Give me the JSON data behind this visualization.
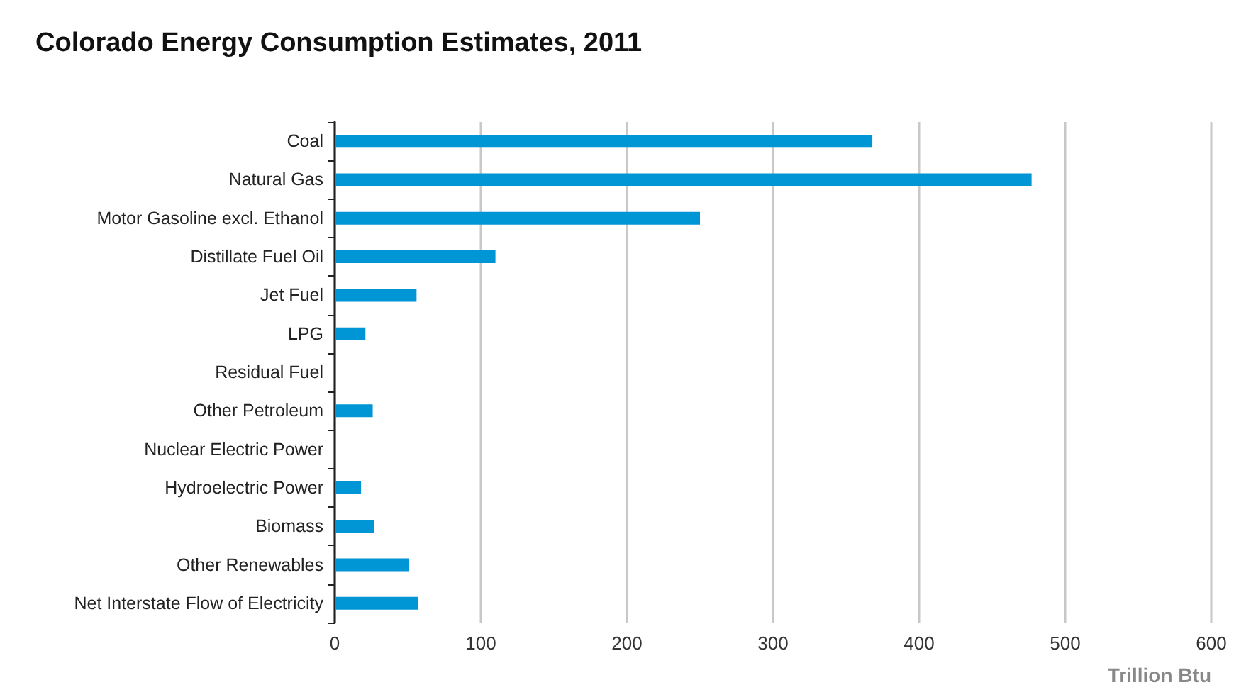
{
  "chart_data": {
    "type": "bar",
    "orientation": "horizontal",
    "title": "Colorado Energy Consumption Estimates, 2011",
    "xlabel": "Trillion Btu",
    "categories": [
      "Coal",
      "Natural Gas",
      "Motor Gasoline excl. Ethanol",
      "Distillate Fuel Oil",
      "Jet Fuel",
      "LPG",
      "Residual Fuel",
      "Other Petroleum",
      "Nuclear Electric Power",
      "Hydroelectric Power",
      "Biomass",
      "Other Renewables",
      "Net Interstate Flow of Electricity"
    ],
    "values": [
      368,
      477,
      250,
      110,
      56,
      21,
      0,
      26,
      0,
      18,
      27,
      51,
      57
    ],
    "color": "#0096d6",
    "xlim": [
      0,
      600
    ],
    "xticks": [
      0,
      100,
      200,
      300,
      400,
      500,
      600
    ],
    "grid": "x"
  }
}
